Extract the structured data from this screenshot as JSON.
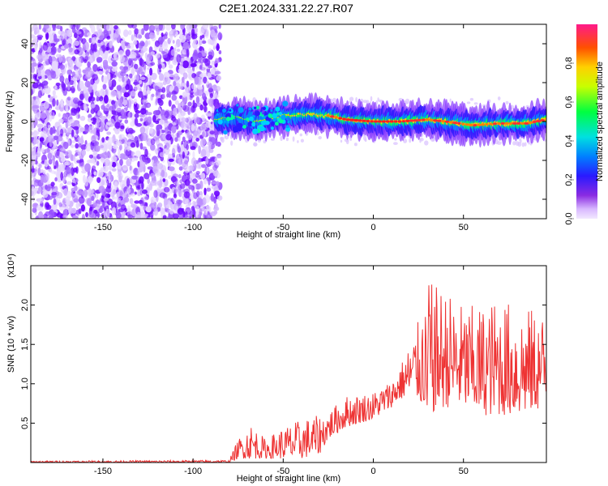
{
  "title": "C2E1.2024.331.22.27.R07",
  "chart_data": [
    {
      "type": "heatmap",
      "xlabel": "Height of straight line (km)",
      "ylabel": "Frequency (Hz)",
      "xlim": [
        -190,
        96
      ],
      "ylim": [
        -50,
        50
      ],
      "xticks": [
        -150,
        -100,
        -50,
        0,
        50
      ],
      "yticks": [
        -40,
        -20,
        0,
        20,
        40
      ],
      "colorbar": {
        "label": "Normalized spectral amplitude",
        "range": [
          0,
          1
        ],
        "ticks": [
          0.0,
          0.2,
          0.4,
          0.6,
          0.8
        ],
        "tick_labels": [
          "0.0",
          "0.2",
          "0.4",
          "0.6",
          "0.8"
        ]
      },
      "noise_region_end_km": -87,
      "signal_ridge": [
        {
          "x": -87,
          "y": 1
        },
        {
          "x": -75,
          "y": 2
        },
        {
          "x": -65,
          "y": 0
        },
        {
          "x": -55,
          "y": 2
        },
        {
          "x": -45,
          "y": 3
        },
        {
          "x": -35,
          "y": 4
        },
        {
          "x": -25,
          "y": 3
        },
        {
          "x": -15,
          "y": 1
        },
        {
          "x": 0,
          "y": 0
        },
        {
          "x": 15,
          "y": 0
        },
        {
          "x": 30,
          "y": 1
        },
        {
          "x": 40,
          "y": 0
        },
        {
          "x": 55,
          "y": -2
        },
        {
          "x": 70,
          "y": -1
        },
        {
          "x": 85,
          "y": -1
        },
        {
          "x": 96,
          "y": 1
        }
      ]
    },
    {
      "type": "line",
      "xlabel": "Height of straight line (km)",
      "ylabel": "SNR (10 * v/v)",
      "yscale_label": "(x10⁴)",
      "xlim": [
        -190,
        96
      ],
      "ylim": [
        0,
        2.5
      ],
      "xticks": [
        -150,
        -100,
        -50,
        0,
        50
      ],
      "yticks": [
        0.5,
        1.0,
        1.5,
        2.0
      ],
      "ytick_labels": [
        "0.5",
        "1.0",
        "1.5",
        "2.0"
      ],
      "series": [
        {
          "color": "#ee3333",
          "envelope": [
            {
              "x": -190,
              "lo": 0.0,
              "hi": 0.02
            },
            {
              "x": -80,
              "lo": 0.0,
              "hi": 0.03
            },
            {
              "x": -75,
              "lo": 0.05,
              "hi": 0.3
            },
            {
              "x": -68,
              "lo": 0.05,
              "hi": 0.5
            },
            {
              "x": -60,
              "lo": 0.05,
              "hi": 0.3
            },
            {
              "x": -50,
              "lo": 0.05,
              "hi": 0.45
            },
            {
              "x": -40,
              "lo": 0.05,
              "hi": 0.55
            },
            {
              "x": -30,
              "lo": 0.1,
              "hi": 0.6
            },
            {
              "x": -25,
              "lo": 0.3,
              "hi": 0.65
            },
            {
              "x": -15,
              "lo": 0.45,
              "hi": 0.85
            },
            {
              "x": 0,
              "lo": 0.55,
              "hi": 0.9
            },
            {
              "x": 10,
              "lo": 0.7,
              "hi": 1.05
            },
            {
              "x": 15,
              "lo": 0.8,
              "hi": 1.25
            },
            {
              "x": 20,
              "lo": 0.85,
              "hi": 1.5
            },
            {
              "x": 25,
              "lo": 0.8,
              "hi": 1.8
            },
            {
              "x": 30,
              "lo": 0.6,
              "hi": 2.3
            },
            {
              "x": 40,
              "lo": 0.7,
              "hi": 2.2
            },
            {
              "x": 50,
              "lo": 0.7,
              "hi": 2.0
            },
            {
              "x": 60,
              "lo": 0.6,
              "hi": 2.0
            },
            {
              "x": 70,
              "lo": 0.6,
              "hi": 2.1
            },
            {
              "x": 80,
              "lo": 0.6,
              "hi": 2.0
            },
            {
              "x": 96,
              "lo": 0.7,
              "hi": 1.9
            }
          ]
        }
      ]
    }
  ]
}
